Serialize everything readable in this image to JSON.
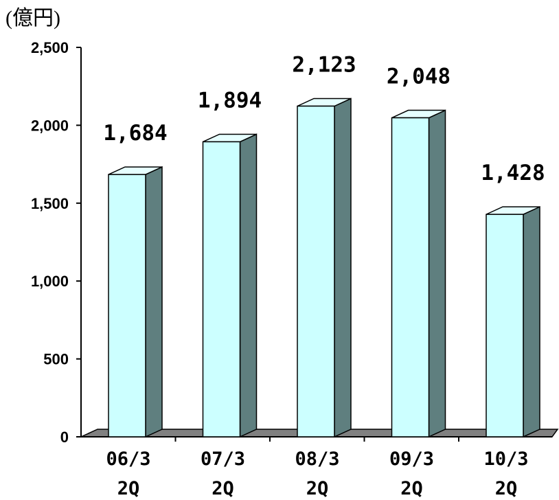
{
  "chart_data": {
    "type": "bar",
    "unit_label": "(億円)",
    "categories": [
      {
        "line1": "06/3",
        "line2": "2Q"
      },
      {
        "line1": "07/3",
        "line2": "2Q"
      },
      {
        "line1": "08/3",
        "line2": "2Q"
      },
      {
        "line1": "09/3",
        "line2": "2Q"
      },
      {
        "line1": "10/3",
        "line2": "2Q"
      }
    ],
    "values": [
      1684,
      1894,
      2123,
      2048,
      1428
    ],
    "value_labels": [
      "1,684",
      "1,894",
      "2,123",
      "2,048",
      "1,428"
    ],
    "y_ticks": [
      {
        "value": 0,
        "label": "0"
      },
      {
        "value": 500,
        "label": "500"
      },
      {
        "value": 1000,
        "label": "1,000"
      },
      {
        "value": 1500,
        "label": "1,500"
      },
      {
        "value": 2000,
        "label": "2,000"
      },
      {
        "value": 2500,
        "label": "2,500"
      }
    ],
    "ylim": [
      0,
      2500
    ],
    "style": "3d-bar",
    "colors": {
      "front": "#ccffff",
      "side": "#5f7f7f",
      "top": "#e6ffff",
      "floor": "#808080",
      "edge": "#000000"
    }
  }
}
